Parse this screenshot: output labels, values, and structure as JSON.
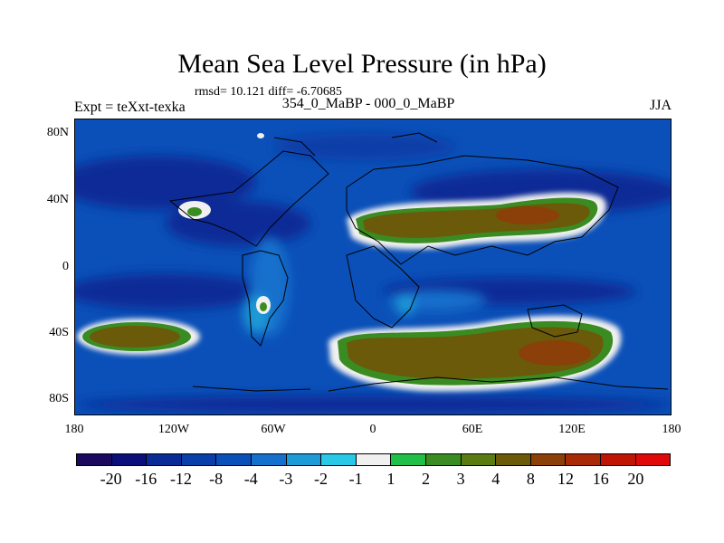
{
  "title": "Mean Sea Level Pressure (in hPa)",
  "stats": "rmsd= 10.121 diff= -6.70685",
  "expt_label": "Expt = teXxt-texka",
  "comparison_label": "354_0_MaBP - 000_0_MaBP",
  "season_label": "JJA",
  "y_axis_labels": [
    "80N",
    "40N",
    "0",
    "40S",
    "80S"
  ],
  "x_axis_labels": [
    "180",
    "120W",
    "60W",
    "0",
    "60E",
    "120E",
    "180"
  ],
  "colorbar": {
    "colors": [
      "#1c0a5e",
      "#0a0f7a",
      "#0a2a96",
      "#0a3ea8",
      "#0b50b8",
      "#1470cc",
      "#1e9ad6",
      "#28c8e6",
      "#f0f0f0",
      "#20c048",
      "#3a8c22",
      "#5a7a12",
      "#6a5a0a",
      "#8a4008",
      "#a82a06",
      "#c01404",
      "#e00808"
    ],
    "labels": [
      "-20",
      "-16",
      "-12",
      "-8",
      "-4",
      "-3",
      "-2",
      "-1",
      "1",
      "2",
      "3",
      "4",
      "8",
      "12",
      "16",
      "20"
    ]
  }
}
